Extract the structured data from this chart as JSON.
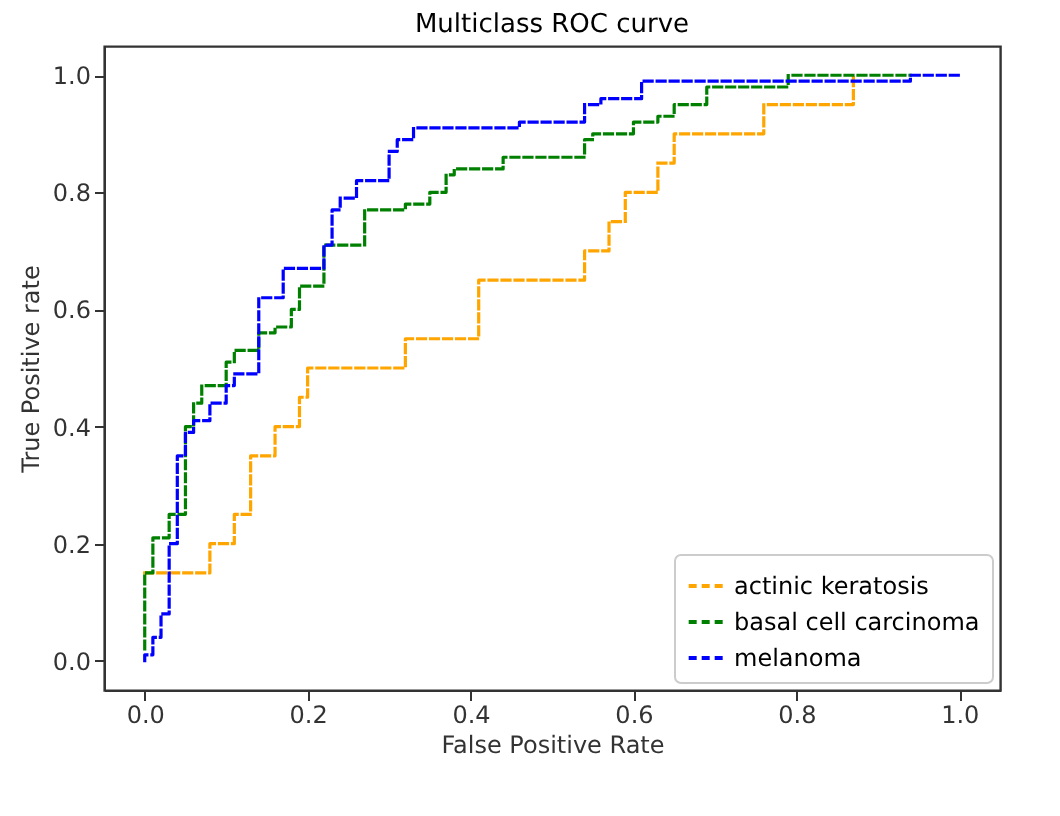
{
  "chart_data": {
    "type": "line",
    "title": "Multiclass ROC curve",
    "xlabel": "False Positive Rate",
    "ylabel": "True Positive rate",
    "xlim": [
      -0.05,
      1.05
    ],
    "ylim": [
      -0.05,
      1.05
    ],
    "xticks": [
      {
        "value": 0,
        "label": "0.0"
      },
      {
        "value": 0.2,
        "label": "0.2"
      },
      {
        "value": 0.4,
        "label": "0.4"
      },
      {
        "value": 0.6,
        "label": "0.6"
      },
      {
        "value": 0.8,
        "label": "0.8"
      },
      {
        "value": 1,
        "label": "1.0"
      }
    ],
    "yticks": [
      {
        "value": 0,
        "label": "0.0"
      },
      {
        "value": 0.2,
        "label": "0.2"
      },
      {
        "value": 0.4,
        "label": "0.4"
      },
      {
        "value": 0.6,
        "label": "0.6"
      },
      {
        "value": 0.8,
        "label": "0.8"
      },
      {
        "value": 1,
        "label": "1.0"
      }
    ],
    "grid": false,
    "legend": "bottom right",
    "line_style": "dashed",
    "series": [
      {
        "name": "actinic keratosis",
        "color": "#ffa500",
        "x": [
          0,
          0.08,
          0.08,
          0.11,
          0.11,
          0.13,
          0.13,
          0.16,
          0.16,
          0.19,
          0.19,
          0.2,
          0.2,
          0.32,
          0.32,
          0.41,
          0.41,
          0.54,
          0.54,
          0.57,
          0.57,
          0.59,
          0.59,
          0.63,
          0.63,
          0.65,
          0.65,
          0.76,
          0.76,
          0.87,
          0.87
        ],
        "values": [
          0.15,
          0.15,
          0.2,
          0.2,
          0.25,
          0.25,
          0.35,
          0.35,
          0.4,
          0.4,
          0.45,
          0.45,
          0.5,
          0.5,
          0.55,
          0.55,
          0.65,
          0.65,
          0.7,
          0.7,
          0.75,
          0.75,
          0.8,
          0.8,
          0.85,
          0.85,
          0.9,
          0.9,
          0.95,
          0.95,
          1
        ]
      },
      {
        "name": "basal cell carcinoma",
        "color": "#008000",
        "x": [
          0,
          0,
          0.01,
          0.01,
          0.03,
          0.03,
          0.05,
          0.05,
          0.06,
          0.06,
          0.07,
          0.07,
          0.1,
          0.1,
          0.11,
          0.11,
          0.14,
          0.14,
          0.16,
          0.16,
          0.18,
          0.18,
          0.19,
          0.19,
          0.22,
          0.22,
          0.27,
          0.27,
          0.32,
          0.32,
          0.35,
          0.35,
          0.37,
          0.37,
          0.38,
          0.38,
          0.44,
          0.44,
          0.45,
          0.45,
          0.54,
          0.54,
          0.55,
          0.55,
          0.6,
          0.6,
          0.63,
          0.63,
          0.65,
          0.65,
          0.69,
          0.69,
          0.79,
          0.79,
          0.94
        ],
        "values": [
          0.02,
          0.15,
          0.15,
          0.21,
          0.21,
          0.25,
          0.25,
          0.4,
          0.4,
          0.44,
          0.44,
          0.47,
          0.47,
          0.51,
          0.51,
          0.53,
          0.53,
          0.56,
          0.56,
          0.57,
          0.57,
          0.6,
          0.6,
          0.64,
          0.64,
          0.71,
          0.71,
          0.77,
          0.77,
          0.78,
          0.78,
          0.8,
          0.8,
          0.83,
          0.83,
          0.84,
          0.84,
          0.86,
          0.86,
          0.86,
          0.86,
          0.89,
          0.89,
          0.9,
          0.9,
          0.92,
          0.92,
          0.93,
          0.93,
          0.95,
          0.95,
          0.98,
          0.98,
          1,
          1
        ]
      },
      {
        "name": "melanoma",
        "color": "#0000ff",
        "x": [
          0,
          0,
          0.01,
          0.01,
          0.02,
          0.02,
          0.03,
          0.03,
          0.04,
          0.04,
          0.05,
          0.05,
          0.06,
          0.06,
          0.08,
          0.08,
          0.1,
          0.1,
          0.11,
          0.11,
          0.14,
          0.14,
          0.17,
          0.17,
          0.22,
          0.22,
          0.23,
          0.23,
          0.24,
          0.24,
          0.26,
          0.26,
          0.3,
          0.3,
          0.31,
          0.31,
          0.33,
          0.33,
          0.46,
          0.46,
          0.54,
          0.54,
          0.56,
          0.56,
          0.61,
          0.61,
          0.94,
          0.94,
          1
        ],
        "values": [
          0,
          0.01,
          0.01,
          0.04,
          0.04,
          0.08,
          0.08,
          0.2,
          0.2,
          0.35,
          0.35,
          0.39,
          0.39,
          0.41,
          0.41,
          0.44,
          0.44,
          0.47,
          0.47,
          0.49,
          0.49,
          0.62,
          0.62,
          0.67,
          0.67,
          0.71,
          0.71,
          0.77,
          0.77,
          0.79,
          0.79,
          0.82,
          0.82,
          0.87,
          0.87,
          0.89,
          0.89,
          0.91,
          0.91,
          0.92,
          0.92,
          0.95,
          0.95,
          0.96,
          0.96,
          0.99,
          0.99,
          1,
          1
        ]
      }
    ]
  }
}
